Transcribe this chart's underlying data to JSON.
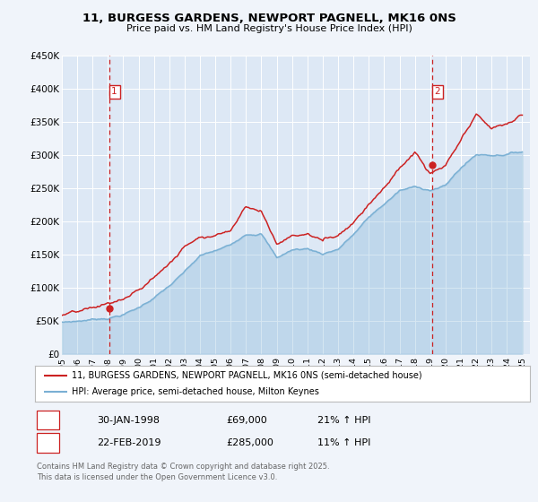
{
  "title_line1": "11, BURGESS GARDENS, NEWPORT PAGNELL, MK16 0NS",
  "title_line2": "Price paid vs. HM Land Registry's House Price Index (HPI)",
  "background_color": "#f0f4fa",
  "plot_bg_color": "#dde8f5",
  "grid_color": "#ffffff",
  "hpi_color": "#7ab0d4",
  "price_color": "#cc2222",
  "vline_color": "#cc2222",
  "marker1_year": 1998.08,
  "marker2_year": 2019.12,
  "marker1_price": 69000,
  "marker2_price": 285000,
  "ylim": [
    0,
    450000
  ],
  "xlim_start": 1995.0,
  "xlim_end": 2025.5,
  "yticks": [
    0,
    50000,
    100000,
    150000,
    200000,
    250000,
    300000,
    350000,
    400000,
    450000
  ],
  "ytick_labels": [
    "£0",
    "£50K",
    "£100K",
    "£150K",
    "£200K",
    "£250K",
    "£300K",
    "£350K",
    "£400K",
    "£450K"
  ],
  "xticks": [
    1995,
    1996,
    1997,
    1998,
    1999,
    2000,
    2001,
    2002,
    2003,
    2004,
    2005,
    2006,
    2007,
    2008,
    2009,
    2010,
    2011,
    2012,
    2013,
    2014,
    2015,
    2016,
    2017,
    2018,
    2019,
    2020,
    2021,
    2022,
    2023,
    2024,
    2025
  ],
  "legend_label_price": "11, BURGESS GARDENS, NEWPORT PAGNELL, MK16 0NS (semi-detached house)",
  "legend_label_hpi": "HPI: Average price, semi-detached house, Milton Keynes",
  "annotation1_label": "1",
  "annotation1_date": "30-JAN-1998",
  "annotation1_price": "£69,000",
  "annotation1_hpi": "21% ↑ HPI",
  "annotation2_label": "2",
  "annotation2_date": "22-FEB-2019",
  "annotation2_price": "£285,000",
  "annotation2_hpi": "11% ↑ HPI",
  "footer": "Contains HM Land Registry data © Crown copyright and database right 2025.\nThis data is licensed under the Open Government Licence v3.0."
}
